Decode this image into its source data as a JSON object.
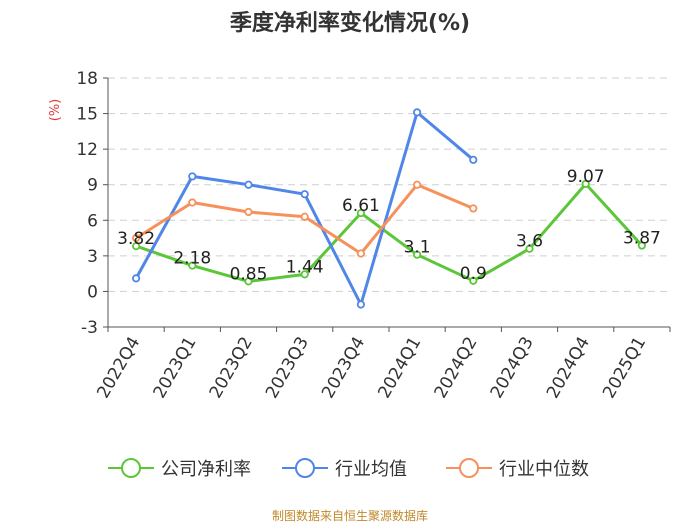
{
  "source_text": "制图数据来自恒生聚源数据库",
  "chart_data": {
    "type": "line",
    "title": "季度净利率变化情况(%)",
    "ylabel": "(%)",
    "xlabel": "",
    "ylim": [
      -3,
      18
    ],
    "yticks": [
      -3,
      0,
      3,
      6,
      9,
      12,
      15,
      18
    ],
    "ytick_labels": [
      "-3",
      "0",
      "3",
      "6",
      "9",
      "12",
      "15",
      "18"
    ],
    "grid": true,
    "legend_position": "bottom",
    "categories": [
      "2022Q4",
      "2023Q1",
      "2023Q2",
      "2023Q3",
      "2023Q4",
      "2024Q1",
      "2024Q2",
      "2024Q3",
      "2024Q4",
      "2025Q1"
    ],
    "series": [
      {
        "name": "公司净利率",
        "color": "#5cc639",
        "values": [
          3.82,
          2.18,
          0.85,
          1.44,
          6.61,
          3.1,
          0.9,
          3.6,
          9.07,
          3.87
        ],
        "labels": [
          "3.82",
          "2.18",
          "0.85",
          "1.44",
          "6.61",
          "3.1",
          "0.9",
          "3.6",
          "9.07",
          "3.87"
        ]
      },
      {
        "name": "行业均值",
        "color": "#4f86e8",
        "values": [
          1.1,
          9.7,
          9.0,
          8.2,
          -1.1,
          15.1,
          11.1,
          null,
          null,
          null
        ]
      },
      {
        "name": "行业中位数",
        "color": "#f7915c",
        "values": [
          4.5,
          7.5,
          6.7,
          6.3,
          3.2,
          9.0,
          7.0,
          null,
          null,
          null
        ]
      }
    ]
  },
  "colors": {
    "grid": "#cfcfcf",
    "axis": "#555555",
    "ylabel": "#e03a3a",
    "source": "#c0892b"
  }
}
